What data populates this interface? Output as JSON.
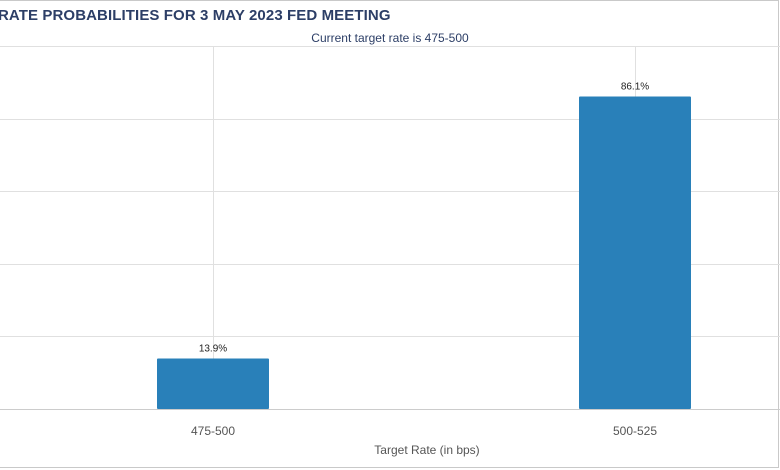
{
  "chart_data": {
    "type": "bar",
    "title": "RATE PROBABILITIES FOR 3 MAY 2023 FED MEETING",
    "subtitle": "Current target rate is 475-500",
    "xlabel": "Target Rate (in bps)",
    "ylabel": "",
    "categories": [
      "475-500",
      "500-525"
    ],
    "values": [
      13.9,
      86.1
    ],
    "data_labels": [
      "13.9%",
      "86.1%"
    ],
    "ylim": [
      0,
      100
    ],
    "yticks": [
      0,
      20,
      40,
      60,
      80,
      100
    ],
    "grid": true,
    "legend": "none",
    "colors": {
      "bar": "#2980b9",
      "grid": "#e0e0e0",
      "axis": "#cccccc",
      "title": "#2c3e66"
    }
  }
}
